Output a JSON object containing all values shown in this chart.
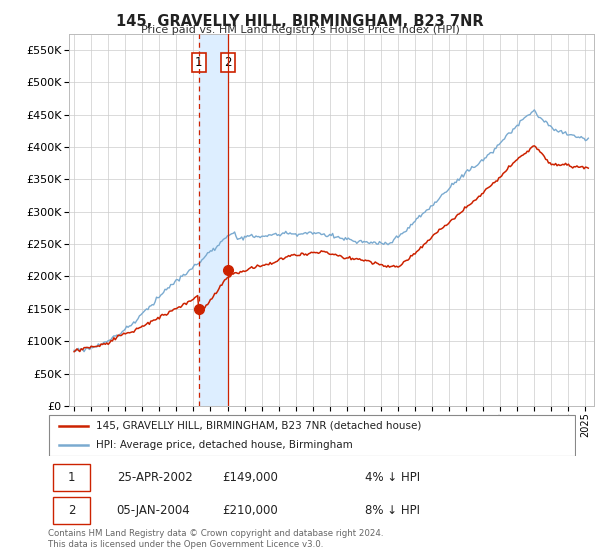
{
  "title": "145, GRAVELLY HILL, BIRMINGHAM, B23 7NR",
  "subtitle": "Price paid vs. HM Land Registry's House Price Index (HPI)",
  "hpi_color": "#7aaad0",
  "price_color": "#cc2200",
  "ylim": [
    0,
    575000
  ],
  "yticks": [
    0,
    50000,
    100000,
    150000,
    200000,
    250000,
    300000,
    350000,
    400000,
    450000,
    500000,
    550000
  ],
  "xlim_start": 1994.7,
  "xlim_end": 2025.5,
  "sale1_x": 2002.32,
  "sale1_y": 149000,
  "sale2_x": 2004.02,
  "sale2_y": 210000,
  "legend_line1": "145, GRAVELLY HILL, BIRMINGHAM, B23 7NR (detached house)",
  "legend_line2": "HPI: Average price, detached house, Birmingham",
  "table_row1": [
    "1",
    "25-APR-2002",
    "£149,000",
    "4% ↓ HPI"
  ],
  "table_row2": [
    "2",
    "05-JAN-2004",
    "£210,000",
    "8% ↓ HPI"
  ],
  "footnote": "Contains HM Land Registry data © Crown copyright and database right 2024.\nThis data is licensed under the Open Government Licence v3.0.",
  "background_color": "#ffffff",
  "grid_color": "#cccccc",
  "shade_color": "#ddeeff"
}
